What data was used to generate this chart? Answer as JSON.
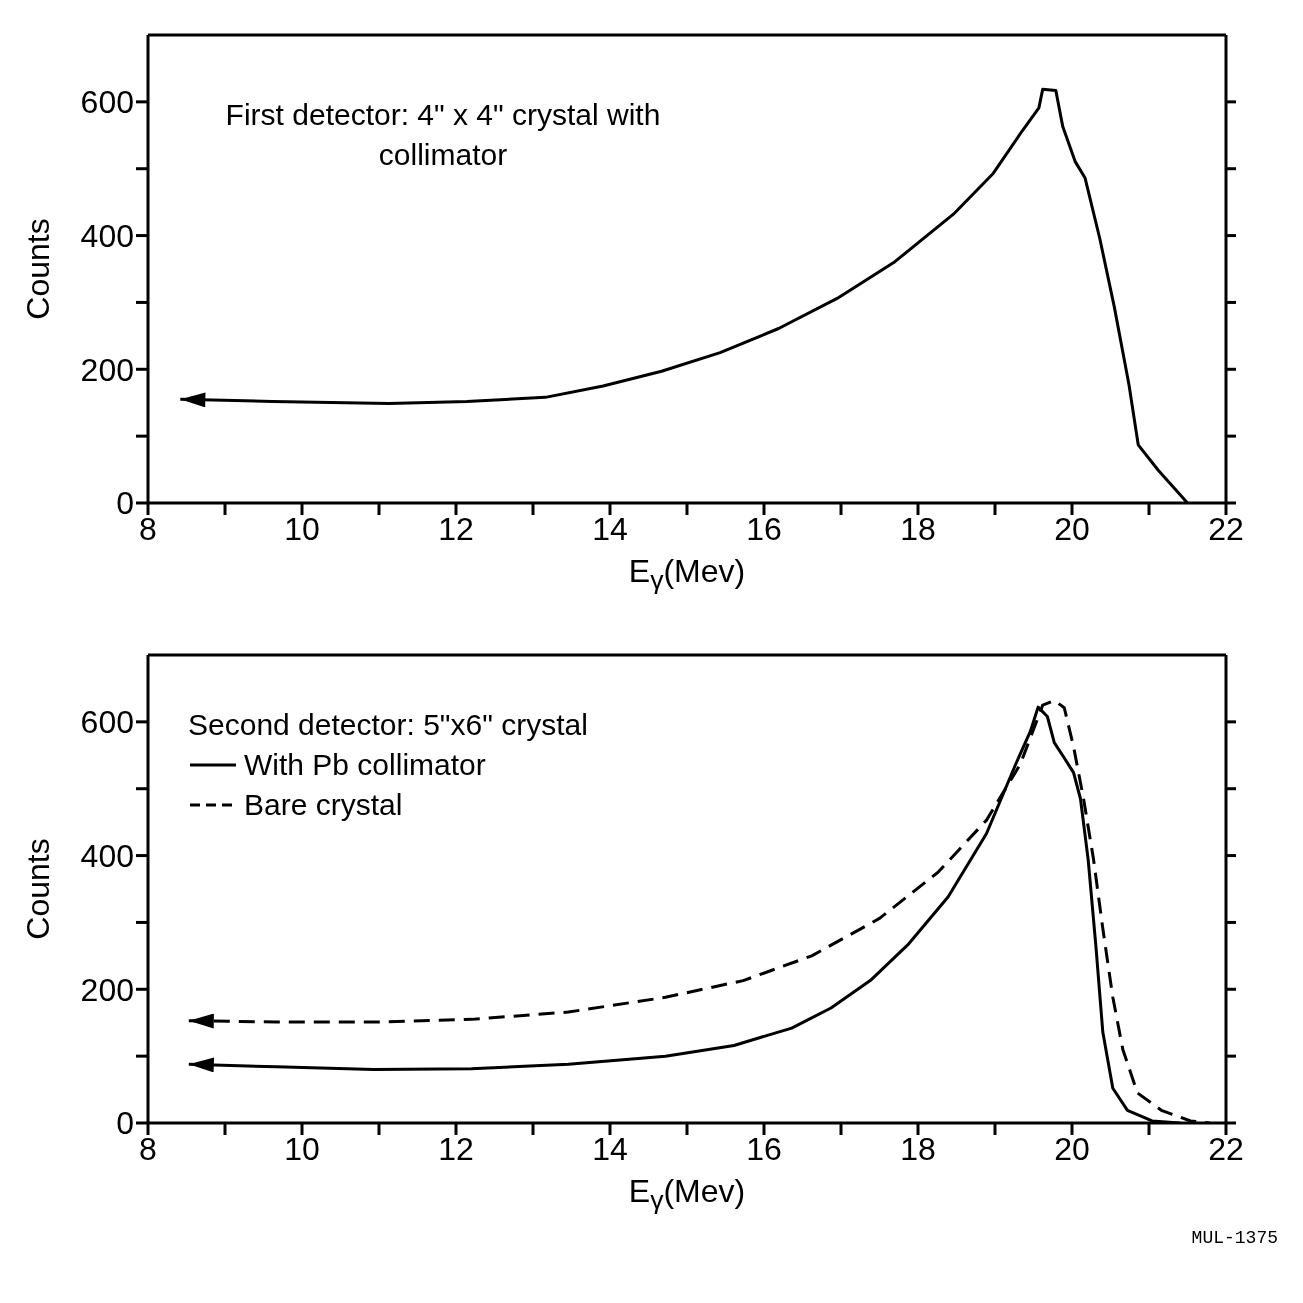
{
  "chart_data": [
    {
      "type": "line",
      "xlabel": "E$_{γ}$(Mev)",
      "ylabel": "Counts",
      "annotations": [
        "First detector: 4\" x 4\" crystal with collimator"
      ],
      "xlim": [
        8,
        22
      ],
      "ylim": [
        0,
        700
      ],
      "xticks": [
        8,
        {
          "value": 9,
          "label": null
        },
        10,
        {
          "value": 11,
          "label": null
        },
        12,
        {
          "value": 13,
          "label": null
        },
        14,
        {
          "value": 15,
          "label": null
        },
        16,
        {
          "value": 17,
          "label": null
        },
        18,
        {
          "value": 19,
          "label": null
        },
        20,
        {
          "value": 21,
          "label": null
        },
        22
      ],
      "yticks": [
        0,
        {
          "value": 100,
          "label": null
        },
        200,
        {
          "value": 300,
          "label": null
        },
        400,
        {
          "value": 500,
          "label": null
        },
        600
      ],
      "series": [
        {
          "color": "#000000",
          "line_style": "solid",
          "x": [
            8.42,
            9.62,
            11.13,
            12.14,
            13.16,
            13.91,
            14.67,
            15.43,
            16.19,
            16.95,
            17.7,
            18.46,
            18.97,
            19.35,
            19.57,
            19.62,
            19.79,
            19.88,
            20.04,
            20.17,
            20.36,
            20.55,
            20.74,
            20.86,
            21.12,
            21.37,
            21.5
          ],
          "values": [
            155,
            152,
            149,
            152,
            158,
            175,
            197,
            225,
            261,
            306,
            361,
            432,
            492,
            556,
            591,
            619,
            617,
            563,
            511,
            486,
            396,
            293,
            177,
            87,
            49,
            17,
            0
          ]
        }
      ]
    },
    {
      "type": "line",
      "xlabel": "E$_{γ}$(Mev)",
      "ylabel": "Counts",
      "legend_title": "Second detector: 5\"x6\" crystal",
      "legend": "top left",
      "annotations": [
        "MUL-1375"
      ],
      "xlim": [
        8,
        22
      ],
      "ylim": [
        0,
        700
      ],
      "xticks": [
        8,
        {
          "value": 9,
          "label": null
        },
        10,
        {
          "value": 11,
          "label": null
        },
        12,
        {
          "value": 13,
          "label": null
        },
        14,
        {
          "value": 15,
          "label": null
        },
        16,
        {
          "value": 17,
          "label": null
        },
        18,
        {
          "value": 19,
          "label": null
        },
        20,
        {
          "value": 21,
          "label": null
        },
        22
      ],
      "yticks": [
        0,
        {
          "value": 100,
          "label": null
        },
        200,
        {
          "value": 300,
          "label": null
        },
        400,
        {
          "value": 500,
          "label": null
        },
        600
      ],
      "series": [
        {
          "name": "With Pb collimator",
          "color": "#000000",
          "line_style": "solid",
          "x": [
            8.53,
            9.67,
            10.93,
            12.2,
            13.46,
            14.72,
            15.61,
            16.36,
            16.87,
            17.38,
            17.88,
            18.39,
            18.89,
            19.27,
            19.46,
            19.56,
            19.68,
            19.77,
            19.9,
            20.02,
            20.11,
            20.21,
            20.31,
            20.4,
            20.53,
            20.72,
            21.04,
            21.4
          ],
          "values": [
            88,
            84,
            80,
            81,
            88,
            100,
            116,
            142,
            172,
            213,
            268,
            338,
            433,
            537,
            586,
            622,
            608,
            569,
            546,
            524,
            485,
            394,
            265,
            136,
            52,
            19,
            3,
            0
          ]
        },
        {
          "name": "Bare crystal",
          "color": "#000000",
          "line_style": "dashed",
          "x": [
            8.53,
            9.67,
            10.93,
            12.2,
            13.46,
            14.72,
            15.73,
            16.62,
            17.5,
            18.26,
            18.89,
            19.33,
            19.62,
            19.77,
            19.9,
            20.02,
            20.15,
            20.28,
            20.4,
            20.53,
            20.66,
            20.85,
            21.16,
            21.54,
            21.79
          ],
          "values": [
            153,
            151,
            151,
            155,
            166,
            188,
            213,
            250,
            306,
            375,
            453,
            537,
            625,
            632,
            621,
            563,
            485,
            394,
            291,
            188,
            110,
            45,
            19,
            3,
            0
          ]
        }
      ]
    }
  ]
}
